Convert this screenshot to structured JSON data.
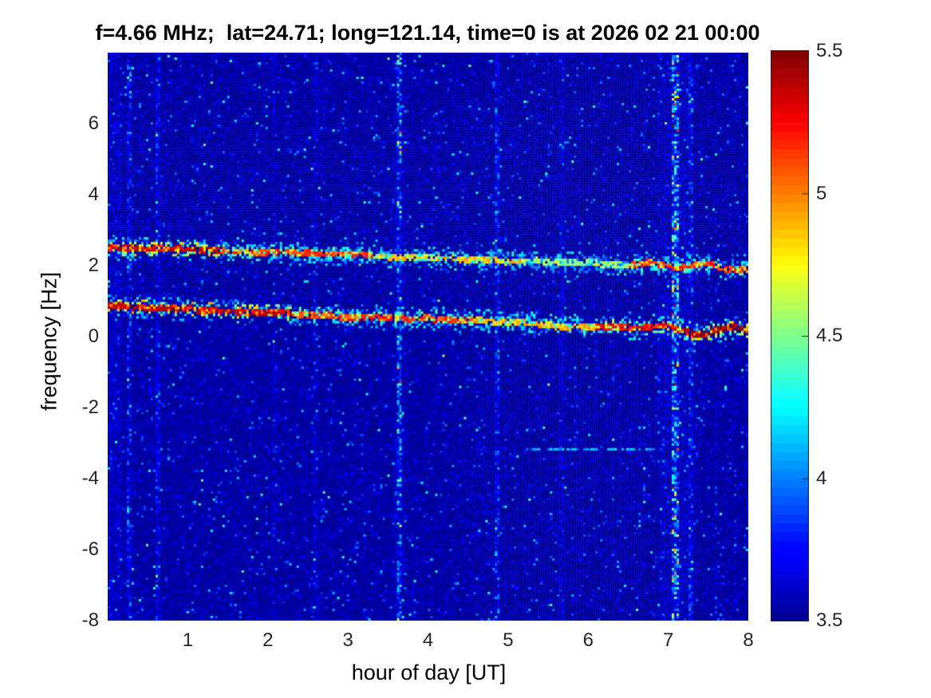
{
  "chart_data": {
    "type": "heatmap",
    "title": "f=4.66 MHz;  lat=24.71; long=121.14, time=0 is at 2026 02 21 00:00",
    "xlabel": "hour of day [UT]",
    "ylabel": "frequency [Hz]",
    "xlim": [
      0,
      8
    ],
    "ylim": [
      -8,
      8
    ],
    "xticks": [
      "1",
      "2",
      "3",
      "4",
      "5",
      "6",
      "7",
      "8"
    ],
    "xtick_values": [
      1,
      2,
      3,
      4,
      5,
      6,
      7,
      8
    ],
    "yticks": [
      "6",
      "4",
      "2",
      "0",
      "-2",
      "-4",
      "-6",
      "-8"
    ],
    "ytick_values": [
      6,
      4,
      2,
      0,
      -2,
      -4,
      -6,
      -8
    ],
    "grid": false,
    "legend": "none",
    "colormap": "jet",
    "colorbar": {
      "min": 3.5,
      "max": 5.5,
      "levels": 64,
      "ticks": [
        "5.5",
        "5",
        "4.5",
        "4",
        "3.5"
      ],
      "tick_values": [
        5.5,
        5,
        4.5,
        4,
        3.5
      ],
      "position": "right"
    },
    "background_noise": {
      "base_level": 3.5,
      "exp_scale": 0.055,
      "speckle_probability": 0.03,
      "cyan_dot_probability": 0.006,
      "hot_dot_probability": 0.0008
    },
    "doppler_bands": [
      {
        "name": "upper-trace",
        "y_start_hz": 2.52,
        "y_end_hz": 1.92,
        "segments_h0_h1_lo_hi": [
          [
            0.0,
            1.4,
            4.7,
            5.5
          ],
          [
            1.4,
            3.3,
            4.3,
            5.3
          ],
          [
            3.3,
            5.2,
            4.1,
            5.0
          ],
          [
            5.2,
            6.5,
            3.9,
            4.7
          ],
          [
            6.5,
            8.1,
            4.3,
            5.3
          ]
        ]
      },
      {
        "name": "lower-trace",
        "y_start_hz": 0.86,
        "y_end_hz": 0.12,
        "segments_h0_h1_lo_hi": [
          [
            0.0,
            2.3,
            4.8,
            5.5
          ],
          [
            2.3,
            4.6,
            4.3,
            5.3
          ],
          [
            4.6,
            6.1,
            4.2,
            5.0
          ],
          [
            6.1,
            7.2,
            4.5,
            5.4
          ],
          [
            7.2,
            8.1,
            4.7,
            5.55
          ]
        ]
      }
    ],
    "vertical_streaks": [
      {
        "hour": 0.28,
        "halfwidth": 0.03,
        "strength": 0.28
      },
      {
        "hour": 0.62,
        "halfwidth": 0.025,
        "strength": 0.2
      },
      {
        "hour": 2.08,
        "halfwidth": 0.02,
        "strength": 0.13
      },
      {
        "hour": 2.6,
        "halfwidth": 0.02,
        "strength": 0.11
      },
      {
        "hour": 3.63,
        "halfwidth": 0.03,
        "strength": 0.45
      },
      {
        "hour": 4.87,
        "halfwidth": 0.025,
        "strength": 0.25
      },
      {
        "hour": 5.67,
        "halfwidth": 0.02,
        "strength": 0.1
      },
      {
        "hour": 7.08,
        "halfwidth": 0.04,
        "strength": 0.6
      },
      {
        "hour": 7.28,
        "halfwidth": 0.02,
        "strength": 0.18
      }
    ],
    "halos": [
      {
        "hour": 7.1,
        "halfwidth": 0.22,
        "strength": 0.07
      },
      {
        "hour": 3.63,
        "halfwidth": 0.09,
        "strength": 0.04
      },
      {
        "hour": 0.05,
        "halfwidth": 0.12,
        "strength": 0.09
      }
    ],
    "dashed_line": {
      "y_hz": -3.18,
      "h0": 5.15,
      "h1": 6.9,
      "level_lo": 3.95,
      "level_hi": 4.25
    }
  },
  "colors": {
    "figure_background": "#ffffff",
    "axis_text": "#262626",
    "label_text": "#000000",
    "deep_blue_floor": "#00008f",
    "dark_red_ceiling": "#7f0000"
  }
}
